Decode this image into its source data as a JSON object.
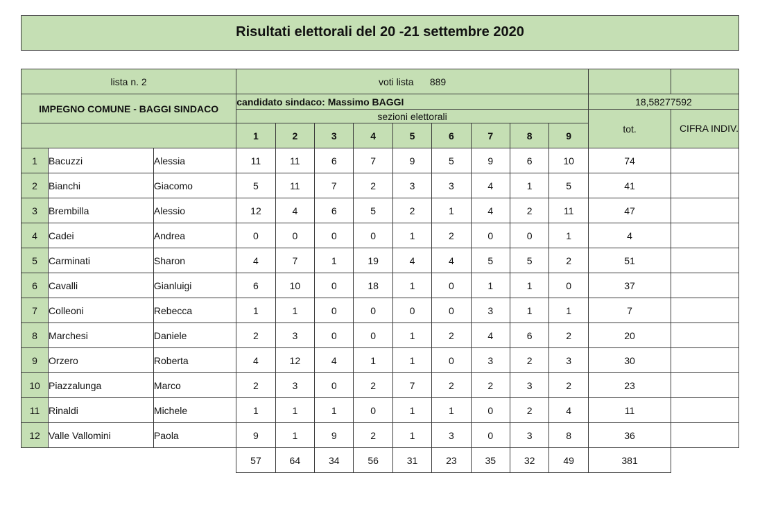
{
  "title": "Risultati elettorali del 20 -21 settembre 2020",
  "header": {
    "lista_label": "lista n. 2",
    "list_name": "IMPEGNO COMUNE - BAGGI SINDACO",
    "voti_lista_label": "voti lista",
    "voti_lista_value": "889",
    "candidato_label": "candidato sindaco: Massimo BAGGI",
    "sezioni_label": "sezioni elettorali",
    "calc_value": "18,58277592",
    "tot_label": "tot.",
    "cifra_label": "CIFRA INDIV.",
    "section_numbers": [
      "1",
      "2",
      "3",
      "4",
      "5",
      "6",
      "7",
      "8",
      "9"
    ]
  },
  "candidates": [
    {
      "n": "1",
      "surname": "Bacuzzi",
      "name": "Alessia",
      "v": [
        "11",
        "11",
        "6",
        "7",
        "9",
        "5",
        "9",
        "6",
        "10"
      ],
      "tot": "74"
    },
    {
      "n": "2",
      "surname": "Bianchi",
      "name": "Giacomo",
      "v": [
        "5",
        "11",
        "7",
        "2",
        "3",
        "3",
        "4",
        "1",
        "5"
      ],
      "tot": "41"
    },
    {
      "n": "3",
      "surname": "Brembilla",
      "name": "Alessio",
      "v": [
        "12",
        "4",
        "6",
        "5",
        "2",
        "1",
        "4",
        "2",
        "11"
      ],
      "tot": "47"
    },
    {
      "n": "4",
      "surname": "Cadei",
      "name": "Andrea",
      "v": [
        "0",
        "0",
        "0",
        "0",
        "1",
        "2",
        "0",
        "0",
        "1"
      ],
      "tot": "4"
    },
    {
      "n": "5",
      "surname": "Carminati",
      "name": "Sharon",
      "v": [
        "4",
        "7",
        "1",
        "19",
        "4",
        "4",
        "5",
        "5",
        "2"
      ],
      "tot": "51"
    },
    {
      "n": "6",
      "surname": "Cavalli",
      "name": "Gianluigi",
      "v": [
        "6",
        "10",
        "0",
        "18",
        "1",
        "0",
        "1",
        "1",
        "0"
      ],
      "tot": "37"
    },
    {
      "n": "7",
      "surname": "Colleoni",
      "name": "Rebecca",
      "v": [
        "1",
        "1",
        "0",
        "0",
        "0",
        "0",
        "3",
        "1",
        "1"
      ],
      "tot": "7"
    },
    {
      "n": "8",
      "surname": "Marchesi",
      "name": "Daniele",
      "v": [
        "2",
        "3",
        "0",
        "0",
        "1",
        "2",
        "4",
        "6",
        "2"
      ],
      "tot": "20"
    },
    {
      "n": "9",
      "surname": "Orzero",
      "name": "Roberta",
      "v": [
        "4",
        "12",
        "4",
        "1",
        "1",
        "0",
        "3",
        "2",
        "3"
      ],
      "tot": "30"
    },
    {
      "n": "10",
      "surname": "Piazzalunga",
      "name": "Marco",
      "v": [
        "2",
        "3",
        "0",
        "2",
        "7",
        "2",
        "2",
        "3",
        "2"
      ],
      "tot": "23"
    },
    {
      "n": "11",
      "surname": "Rinaldi",
      "name": "Michele",
      "v": [
        "1",
        "1",
        "1",
        "0",
        "1",
        "1",
        "0",
        "2",
        "4"
      ],
      "tot": "11"
    },
    {
      "n": "12",
      "surname": "Valle Vallomini",
      "name": "Paola",
      "v": [
        "9",
        "1",
        "9",
        "2",
        "1",
        "3",
        "0",
        "3",
        "8"
      ],
      "tot": "36"
    }
  ],
  "totals": {
    "v": [
      "57",
      "64",
      "34",
      "56",
      "31",
      "23",
      "35",
      "32",
      "49"
    ],
    "tot": "381"
  },
  "style": {
    "green": "#c5dfb4",
    "border": "#3a3a3a",
    "text": "#111111",
    "faint_text": "#ffffff",
    "title_fontsize": 20,
    "body_fontsize": 14,
    "col_widths": {
      "index": 36,
      "surname": 140,
      "name": 110,
      "section": 52,
      "tot": 110,
      "cifra": 90
    }
  }
}
